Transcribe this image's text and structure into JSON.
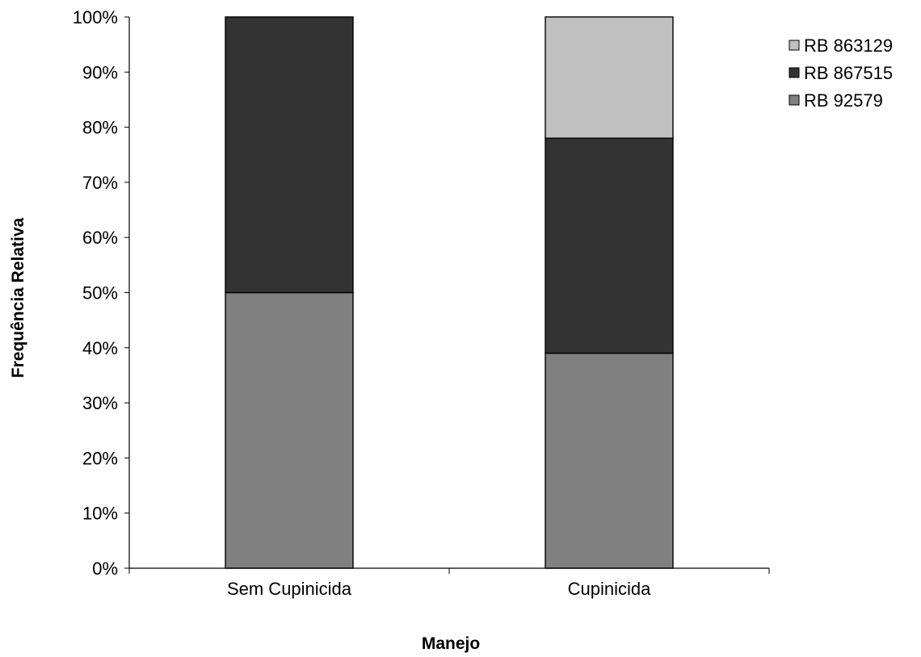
{
  "chart_data": {
    "type": "bar",
    "stacked": true,
    "normalized_percent": true,
    "title": "",
    "xlabel": "Manejo",
    "ylabel": "Frequência Relativa",
    "categories": [
      "Sem Cupinicida",
      "Cupinicida"
    ],
    "ylim": [
      0,
      100
    ],
    "y_ticks": [
      "0%",
      "10%",
      "20%",
      "30%",
      "40%",
      "50%",
      "60%",
      "70%",
      "80%",
      "90%",
      "100%"
    ],
    "grid": false,
    "legend_position": "top-right",
    "series": [
      {
        "name": "RB 92579",
        "values": [
          50,
          39
        ],
        "color": "#808080"
      },
      {
        "name": "RB 867515",
        "values": [
          50,
          39
        ],
        "color": "#333333"
      },
      {
        "name": "RB 863129",
        "values": [
          0,
          22
        ],
        "color": "#c0c0c0"
      }
    ],
    "legend_order": [
      "RB 863129",
      "RB 867515",
      "RB 92579"
    ]
  }
}
